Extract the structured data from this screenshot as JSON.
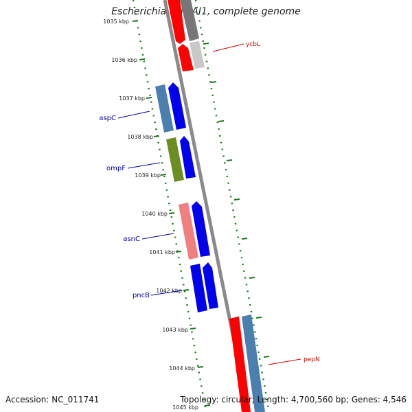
{
  "title": "Escherichia coli IAI1, complete genome",
  "accession": "Accession: NC_011741",
  "summary": "Topology: circular; Length: 4,700,560 bp; Genes: 4,546",
  "ticks": [
    {
      "label": "1035 kbp"
    },
    {
      "label": "1036 kbp"
    },
    {
      "label": "1037 kbp"
    },
    {
      "label": "1038 kbp"
    },
    {
      "label": "1039 kbp"
    },
    {
      "label": "1040 kbp"
    },
    {
      "label": "1041 kbp"
    },
    {
      "label": "1042 kbp"
    },
    {
      "label": "1043 kbp"
    },
    {
      "label": "1044 kbp"
    },
    {
      "label": "1045 kbp"
    }
  ],
  "gene_labels": [
    {
      "name": "ycbL",
      "side": "right",
      "color": "#cc0000"
    },
    {
      "name": "aspC",
      "side": "left",
      "color": "#0000aa"
    },
    {
      "name": "ompF",
      "side": "left",
      "color": "#0000aa"
    },
    {
      "name": "asnC",
      "side": "left",
      "color": "#0000aa"
    },
    {
      "name": "pncB",
      "side": "left",
      "color": "#0000aa"
    },
    {
      "name": "pepN",
      "side": "right",
      "color": "#cc0000"
    }
  ],
  "colors": {
    "backbone": "#8a8a8a",
    "tick": "#1a7a1a",
    "cds_forward": "#0000ee",
    "cds_red": "#ff0000",
    "cog_steel": "#4a7fb0",
    "cog_olive": "#6b8e23",
    "cog_salmon": "#f08080",
    "cog_gray": "#777777",
    "cog_lightgray": "#c8c8c8"
  }
}
